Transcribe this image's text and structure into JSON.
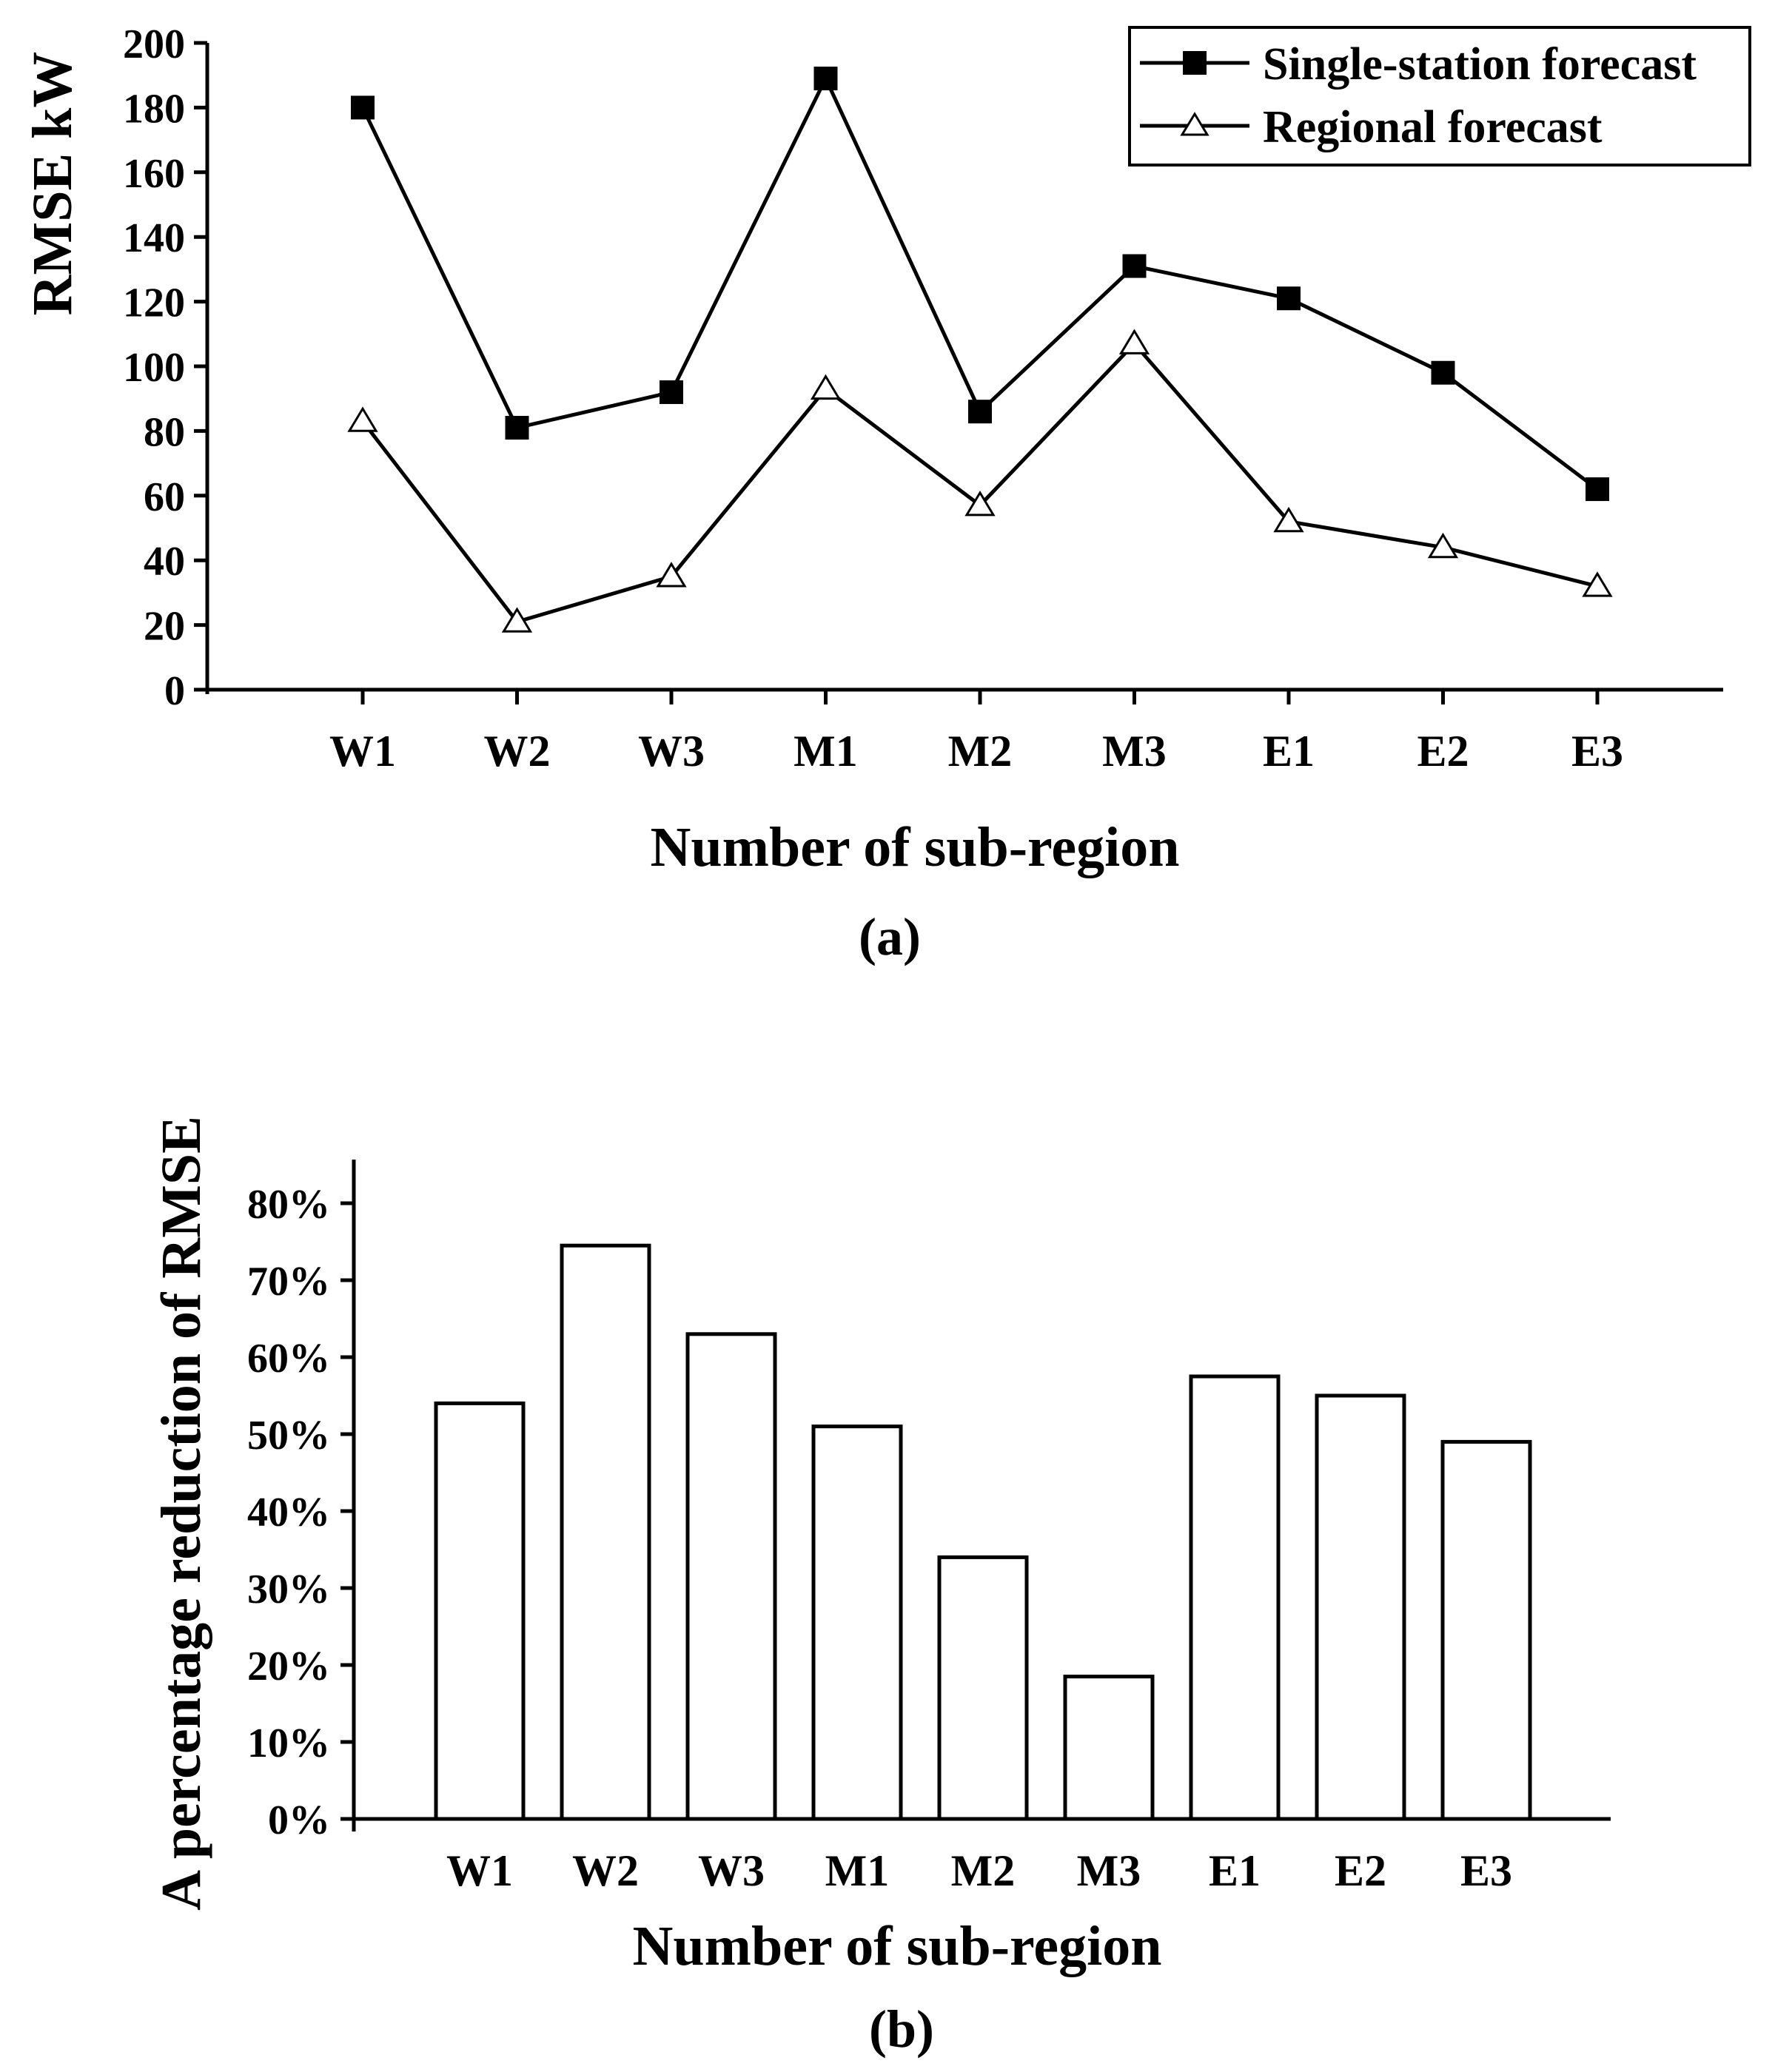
{
  "chart_data": [
    {
      "id": "a",
      "type": "line",
      "panel_label": "(a)",
      "categories": [
        "W1",
        "W2",
        "W3",
        "M1",
        "M2",
        "M3",
        "E1",
        "E2",
        "E3"
      ],
      "series": [
        {
          "name": "Single-station forecast",
          "marker": "filled-square",
          "values": [
            180,
            81,
            92,
            189,
            86,
            131,
            121,
            98,
            62
          ]
        },
        {
          "name": "Regional forecast",
          "marker": "open-triangle",
          "values": [
            83,
            21,
            35,
            93,
            57,
            107,
            52,
            44,
            32
          ]
        }
      ],
      "xlabel": "Number of sub-region",
      "ylabel": "RMSE kW",
      "ylim": [
        0,
        200
      ],
      "yticks": [
        "0",
        "20",
        "40",
        "60",
        "80",
        "100",
        "120",
        "140",
        "160",
        "180",
        "200"
      ],
      "legend_position": "top-right",
      "grid": false
    },
    {
      "id": "b",
      "type": "bar",
      "panel_label": "(b)",
      "categories": [
        "W1",
        "W2",
        "W3",
        "M1",
        "M2",
        "M3",
        "E1",
        "E2",
        "E3"
      ],
      "values": [
        54,
        74.5,
        63,
        51,
        34,
        18.5,
        57.5,
        55,
        49
      ],
      "value_unit": "%",
      "xlabel": "Number of sub-region",
      "ylabel": "A percentage reduction of RMSE",
      "ylim": [
        0,
        85
      ],
      "yticks": [
        "0%",
        "10%",
        "20%",
        "30%",
        "40%",
        "50%",
        "60%",
        "70%",
        "80%"
      ],
      "grid": false
    }
  ]
}
